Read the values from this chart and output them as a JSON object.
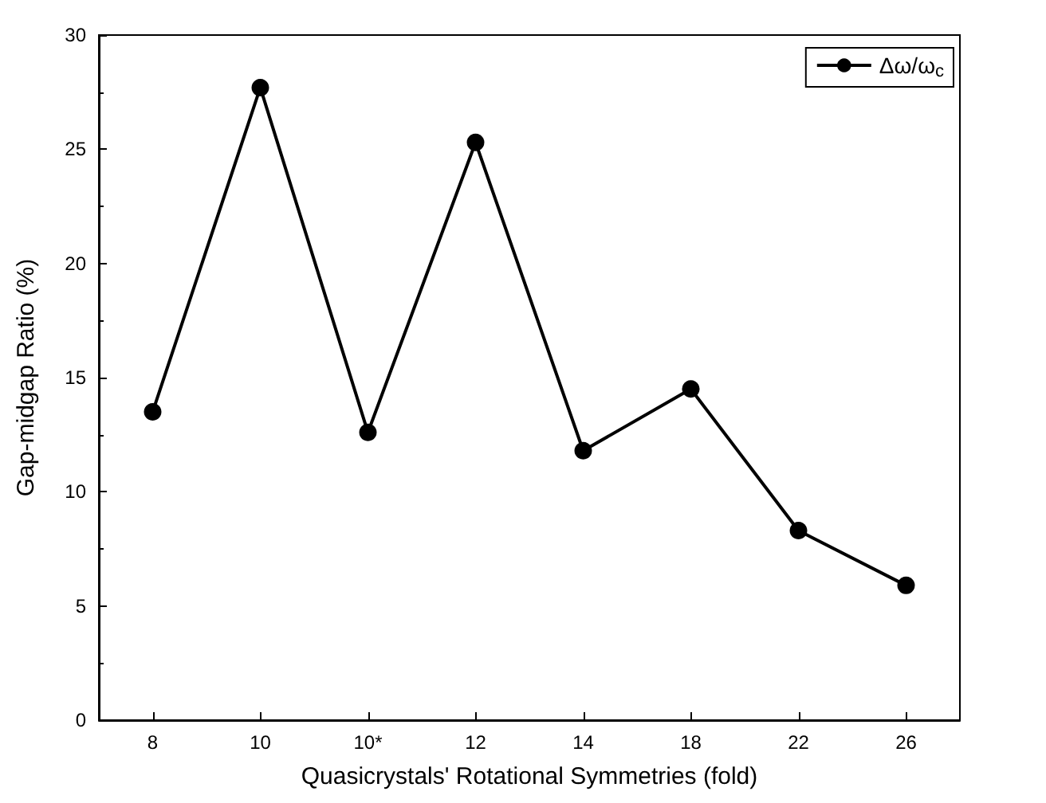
{
  "chart_data": {
    "type": "line",
    "xlabel": "Quasicrystals' Rotational Symmetries (fold)",
    "ylabel": "Gap-midgap Ratio (%)",
    "categories": [
      "8",
      "10",
      "10*",
      "12",
      "14",
      "18",
      "22",
      "26"
    ],
    "series": [
      {
        "name": "Δω/ω$_{c}$",
        "color": "#000000",
        "values": [
          13.5,
          27.7,
          12.6,
          25.3,
          11.8,
          14.5,
          8.3,
          5.9
        ]
      }
    ],
    "ylim": [
      0,
      30
    ],
    "yticks": [
      0,
      5,
      10,
      15,
      20,
      25,
      30
    ],
    "grid": false,
    "legend": "top right",
    "marker": "circle",
    "line_style": "solid"
  }
}
